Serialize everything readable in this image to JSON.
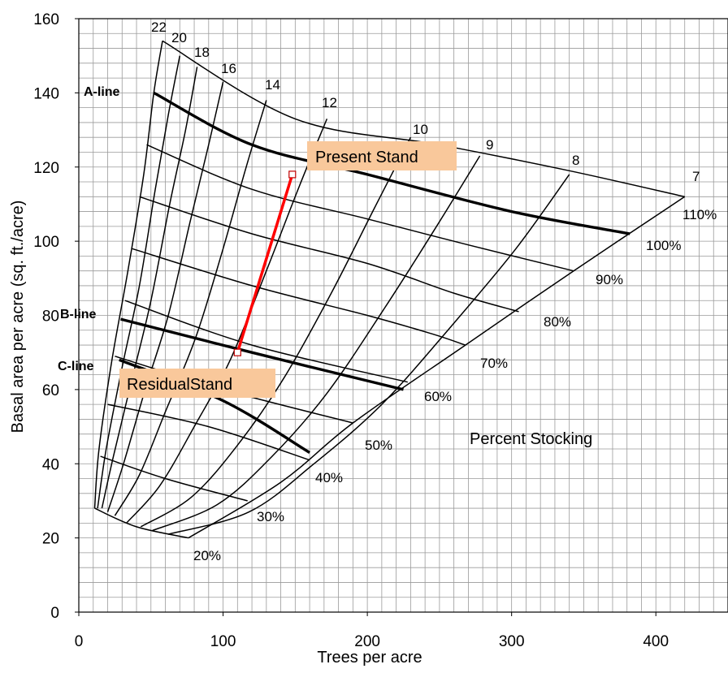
{
  "chart_data": {
    "type": "line",
    "title": "",
    "xlabel": "Trees per acre",
    "ylabel": "Basal area per acre (sq. ft./acre)",
    "xlim": [
      0,
      450
    ],
    "ylim": [
      0,
      160
    ],
    "xticks": [
      0,
      100,
      200,
      300,
      400
    ],
    "yticks": [
      0,
      20,
      40,
      60,
      80,
      100,
      120,
      140,
      160
    ],
    "x_minor_step": 10,
    "y_minor_step": 4,
    "grid": true,
    "colors": {
      "grid": "#9a9a9a",
      "curves": "#000000",
      "thinning": "#ff0000",
      "callout_fill": "#f9c89b"
    },
    "stocking_curves": [
      {
        "label": "110%",
        "emphasis": false,
        "points": [
          [
            58,
            154
          ],
          [
            150,
            133
          ],
          [
            250,
            126
          ],
          [
            340,
            119
          ],
          [
            420,
            112
          ]
        ]
      },
      {
        "label": "100%",
        "emphasis": true,
        "points": [
          [
            52,
            140
          ],
          [
            120,
            126
          ],
          [
            200,
            118
          ],
          [
            300,
            108
          ],
          [
            382,
            102
          ]
        ]
      },
      {
        "label": "90%",
        "emphasis": false,
        "points": [
          [
            47,
            126
          ],
          [
            120,
            114
          ],
          [
            200,
            106
          ],
          [
            270,
            99
          ],
          [
            343,
            92
          ]
        ]
      },
      {
        "label": "80%",
        "emphasis": false,
        "points": [
          [
            42,
            112
          ],
          [
            120,
            102
          ],
          [
            200,
            94
          ],
          [
            260,
            86
          ],
          [
            305,
            81
          ]
        ]
      },
      {
        "label": "70%",
        "emphasis": false,
        "points": [
          [
            37,
            98
          ],
          [
            120,
            88
          ],
          [
            200,
            80
          ],
          [
            245,
            75
          ],
          [
            268,
            72
          ]
        ]
      },
      {
        "label": "60%",
        "emphasis": true,
        "points": [
          [
            29,
            79
          ],
          [
            120,
            70
          ],
          [
            225,
            60
          ]
        ]
      },
      {
        "label": "",
        "emphasis": false,
        "points": [
          [
            32,
            84
          ],
          [
            120,
            72
          ],
          [
            228,
            62
          ]
        ]
      },
      {
        "label": "50%",
        "emphasis": false,
        "points": [
          [
            25,
            69
          ],
          [
            100,
            60
          ],
          [
            190,
            51
          ]
        ]
      },
      {
        "label": "40%",
        "emphasis": false,
        "points": [
          [
            20,
            56
          ],
          [
            90,
            50
          ],
          [
            160,
            41
          ]
        ]
      },
      {
        "label": "40%",
        "emphasis": true,
        "points": [
          [
            28,
            68
          ],
          [
            100,
            57
          ],
          [
            160,
            43
          ]
        ]
      },
      {
        "label": "30%",
        "emphasis": false,
        "points": [
          [
            15,
            42
          ],
          [
            60,
            36
          ],
          [
            117,
            30
          ]
        ]
      },
      {
        "label": "20%",
        "emphasis": false,
        "points": [
          [
            11,
            28
          ],
          [
            40,
            23
          ],
          [
            76,
            20
          ]
        ]
      }
    ],
    "diameter_lines": [
      {
        "label": "22",
        "points": [
          [
            58,
            154
          ],
          [
            52,
            140
          ],
          [
            45,
            118
          ],
          [
            34,
            92
          ],
          [
            23,
            68
          ],
          [
            14,
            44
          ],
          [
            11,
            28
          ]
        ]
      },
      {
        "label": "20",
        "points": [
          [
            70,
            150
          ],
          [
            62,
            134
          ],
          [
            53,
            114
          ],
          [
            42,
            88
          ],
          [
            30,
            66
          ],
          [
            19,
            44
          ],
          [
            13,
            28
          ]
        ]
      },
      {
        "label": "18",
        "points": [
          [
            82,
            147
          ],
          [
            74,
            130
          ],
          [
            63,
            110
          ],
          [
            50,
            84
          ],
          [
            37,
            63
          ],
          [
            24,
            42
          ],
          [
            16,
            28
          ]
        ]
      },
      {
        "label": "16",
        "points": [
          [
            100,
            143
          ],
          [
            90,
            126
          ],
          [
            77,
            105
          ],
          [
            62,
            80
          ],
          [
            46,
            60
          ],
          [
            31,
            40
          ],
          [
            20,
            27
          ]
        ]
      },
      {
        "label": "14",
        "points": [
          [
            130,
            138
          ],
          [
            116,
            120
          ],
          [
            100,
            98
          ],
          [
            81,
            74
          ],
          [
            60,
            54
          ],
          [
            42,
            37
          ],
          [
            25,
            26
          ]
        ]
      },
      {
        "label": "12",
        "points": [
          [
            172,
            133
          ],
          [
            153,
            115
          ],
          [
            130,
            92
          ],
          [
            105,
            68
          ],
          [
            80,
            50
          ],
          [
            56,
            34
          ],
          [
            33,
            24
          ]
        ]
      },
      {
        "label": "10",
        "points": [
          [
            230,
            128
          ],
          [
            205,
            109
          ],
          [
            175,
            86
          ],
          [
            142,
            63
          ],
          [
            110,
            45
          ],
          [
            78,
            31
          ],
          [
            43,
            23
          ]
        ]
      },
      {
        "label": "9",
        "points": [
          [
            278,
            123
          ],
          [
            248,
            104
          ],
          [
            212,
            82
          ],
          [
            172,
            59
          ],
          [
            134,
            42
          ],
          [
            96,
            29
          ],
          [
            51,
            22
          ]
        ]
      },
      {
        "label": "8",
        "points": [
          [
            340,
            118
          ],
          [
            303,
            98
          ],
          [
            258,
            77
          ],
          [
            210,
            56
          ],
          [
            163,
            40
          ],
          [
            118,
            27
          ],
          [
            62,
            21
          ]
        ]
      },
      {
        "label": "7",
        "points": [
          [
            420,
            112
          ],
          [
            343,
            92
          ],
          [
            268,
            72
          ],
          [
            190,
            51
          ],
          [
            140,
            35
          ],
          [
            76,
            20
          ]
        ]
      }
    ],
    "diameter_labels": [
      "22",
      "20",
      "18",
      "16",
      "14",
      "12",
      "10",
      "9",
      "8",
      "7"
    ],
    "stocking_labels": [
      "110%",
      "100%",
      "90%",
      "80%",
      "70%",
      "60%",
      "50%",
      "40%",
      "30%",
      "20%"
    ],
    "guide_lines": [
      "A-line",
      "B-line",
      "C-line"
    ],
    "thinning": {
      "present": {
        "label": "Present Stand",
        "x": 148,
        "y": 118
      },
      "residual": {
        "label": "ResidualStand",
        "x": 110,
        "y": 70
      }
    },
    "annotation": "Percent Stocking"
  }
}
